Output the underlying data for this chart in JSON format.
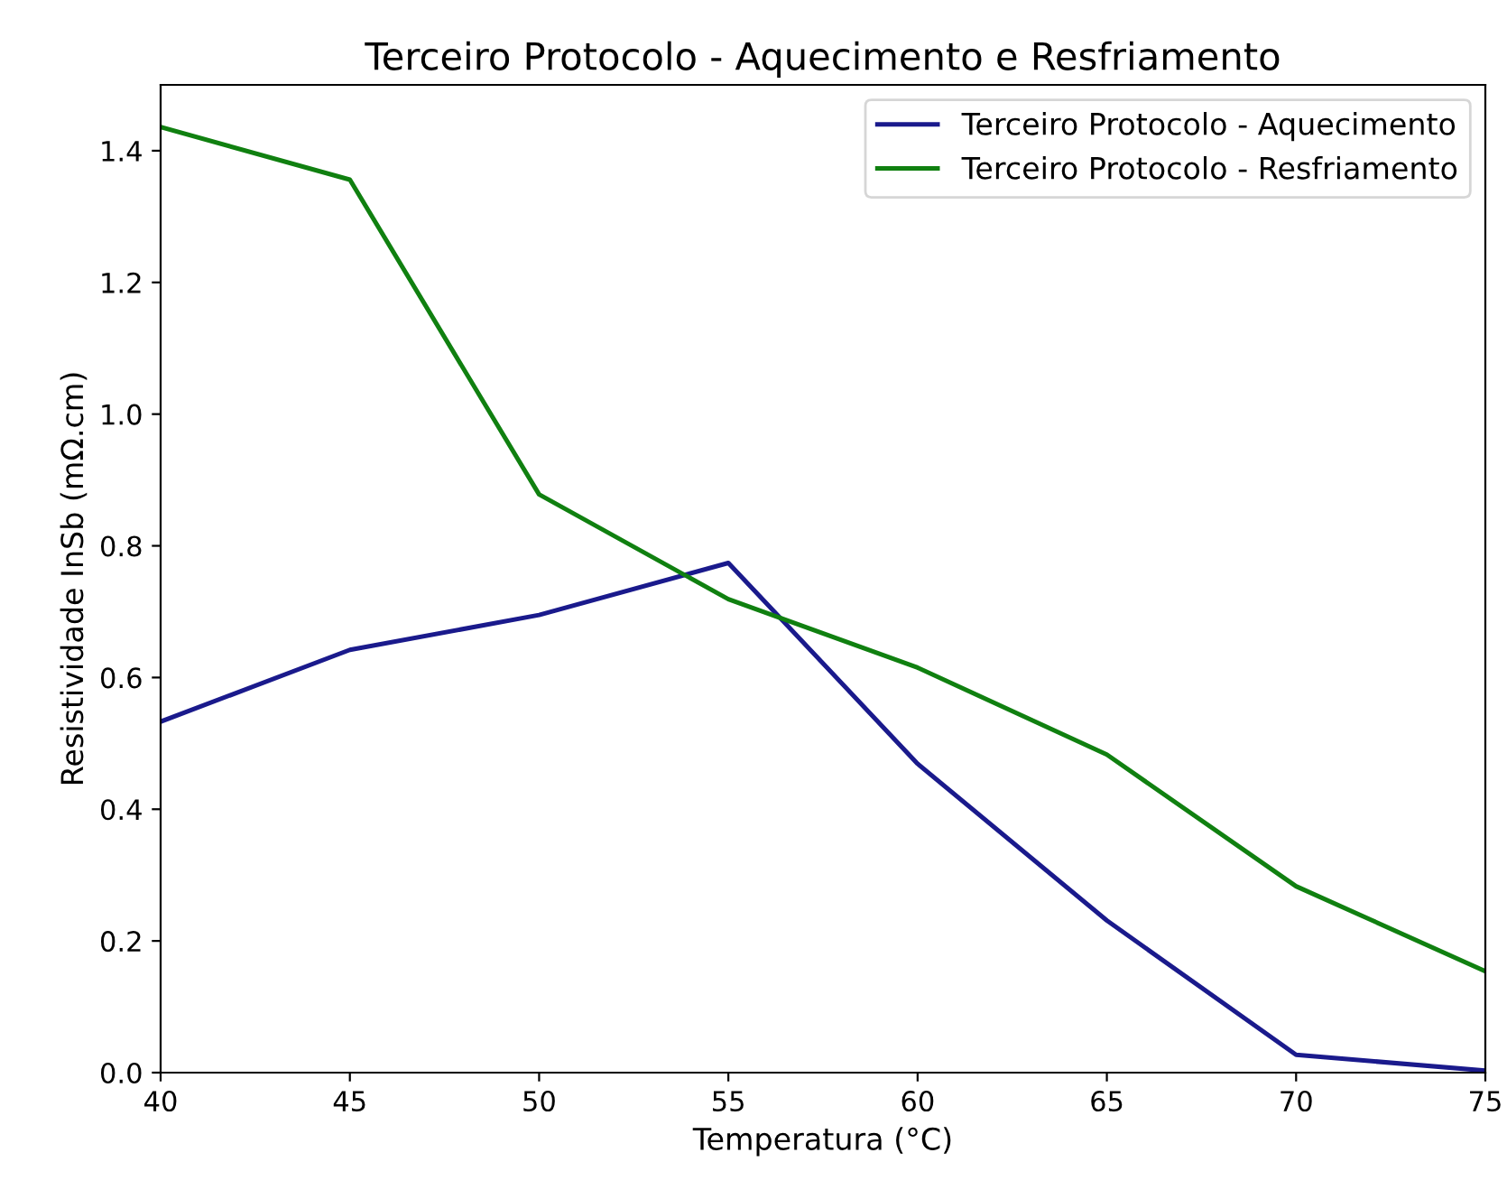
{
  "chart_data": {
    "type": "line",
    "title": "Terceiro Protocolo - Aquecimento e Resfriamento",
    "xlabel": "Temperatura (°C)",
    "ylabel": "Resistividade InSb (mΩ.cm)",
    "x": [
      40,
      45,
      50,
      55,
      60,
      65,
      70,
      75
    ],
    "series": [
      {
        "name": "Terceiro Protocolo - Aquecimento",
        "color": "#1a1a8c",
        "values": [
          0.533,
          0.642,
          0.695,
          0.774,
          0.469,
          0.231,
          0.027,
          0.003
        ]
      },
      {
        "name": "Terceiro Protocolo - Resfriamento",
        "color": "#108010",
        "values": [
          1.436,
          1.356,
          0.878,
          0.719,
          0.615,
          0.483,
          0.283,
          0.154
        ]
      }
    ],
    "xlim": [
      40,
      75
    ],
    "xticks": [
      40,
      45,
      50,
      55,
      60,
      65,
      70,
      75
    ],
    "ylim": [
      0,
      1.5
    ],
    "yticks": [
      {
        "value": 0,
        "label": "0.0"
      },
      {
        "value": 0.2,
        "label": "0.2"
      },
      {
        "value": 0.4,
        "label": "0.4"
      },
      {
        "value": 0.6,
        "label": "0.6"
      },
      {
        "value": 0.8,
        "label": "0.8"
      },
      {
        "value": 1.0,
        "label": "1.0"
      },
      {
        "value": 1.2,
        "label": "1.2"
      },
      {
        "value": 1.4,
        "label": "1.4"
      }
    ],
    "grid": false,
    "legend": "top right"
  }
}
